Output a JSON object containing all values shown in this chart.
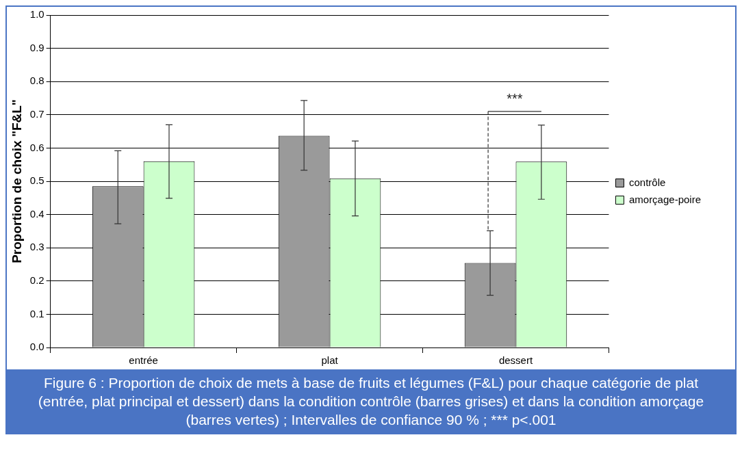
{
  "chart_data": {
    "type": "bar",
    "ylabel": "Proportion de choix \"F&L\"",
    "categories": [
      "entrée",
      "plat",
      "dessert"
    ],
    "series": [
      {
        "name": "contrôle",
        "color": "#9a9a9a",
        "values": [
          0.485,
          0.637,
          0.254
        ],
        "errors": [
          [
            0.372,
            0.592
          ],
          [
            0.533,
            0.743
          ],
          [
            0.157,
            0.351
          ]
        ]
      },
      {
        "name": "amorçage-poire",
        "color": "#ccffcc",
        "values": [
          0.56,
          0.509,
          0.559
        ],
        "errors": [
          [
            0.449,
            0.67
          ],
          [
            0.396,
            0.621
          ],
          [
            0.446,
            0.669
          ]
        ]
      }
    ],
    "ylim": [
      0,
      1
    ],
    "yticks": [
      {
        "value": 0,
        "label": "0.0"
      },
      {
        "value": 0.1,
        "label": "0.1"
      },
      {
        "value": 0.2,
        "label": "0.2"
      },
      {
        "value": 0.3,
        "label": "0.3"
      },
      {
        "value": 0.4,
        "label": "0.4"
      },
      {
        "value": 0.5,
        "label": "0.5"
      },
      {
        "value": 0.6,
        "label": "0.6"
      },
      {
        "value": 0.7,
        "label": "0.7"
      },
      {
        "value": 0.8,
        "label": "0.8"
      },
      {
        "value": 0.9,
        "label": "0.9"
      },
      {
        "value": 1,
        "label": "1.0"
      }
    ],
    "grid": "y",
    "legend": "right",
    "annotations": [
      "***",
      "Figure 6 : Proportion de choix de mets à base de fruits et légumes (F&L) pour chaque catégorie de plat (entrée, plat principal et dessert) dans la condition contrôle (barres grises) et dans la condition amorçage (barres vertes) ; Intervalles de confiance 90 % ; *** p<.001"
    ]
  }
}
